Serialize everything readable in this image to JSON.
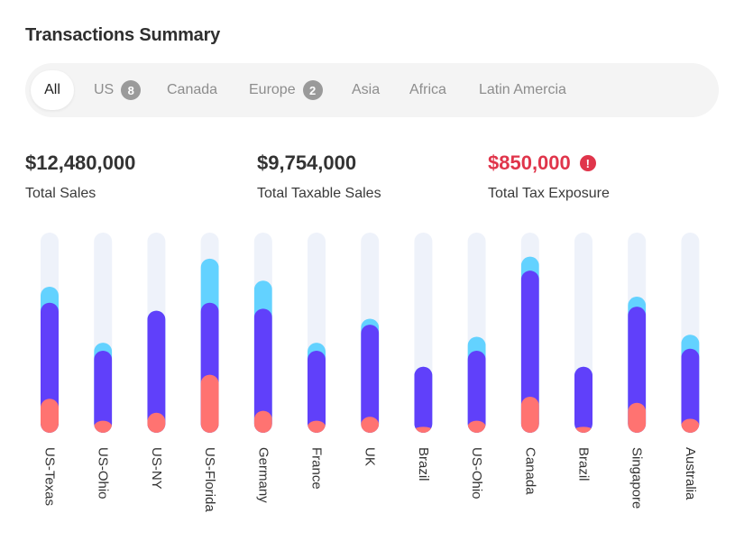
{
  "header": {
    "title": "Transactions Summary"
  },
  "tabs": [
    {
      "label": "All",
      "badge": null,
      "active": true
    },
    {
      "label": "US",
      "badge": "8",
      "active": false
    },
    {
      "label": "Canada",
      "badge": null,
      "active": false
    },
    {
      "label": "Europe",
      "badge": "2",
      "active": false
    },
    {
      "label": "Asia",
      "badge": null,
      "active": false
    },
    {
      "label": "Africa",
      "badge": null,
      "active": false
    },
    {
      "label": "Latin Amercia",
      "badge": null,
      "active": false
    }
  ],
  "stats": {
    "total_sales": {
      "value": "$12,480,000",
      "label": "Total Sales"
    },
    "taxable_sales": {
      "value": "$9,754,000",
      "label": "Total Taxable Sales"
    },
    "tax_exposure": {
      "value": "$850,000",
      "label": "Total Tax Exposure",
      "alert_icon": "exclamation-icon"
    }
  },
  "colors": {
    "track": "#eef2fa",
    "top_segment": "#63d2ff",
    "mid_segment": "#6040fa",
    "bottom_segment": "#ff7371",
    "alert": "#e0354b"
  },
  "chart_data": {
    "type": "bar",
    "stacked": true,
    "categories": [
      "US-Texas",
      "US-Ohio",
      "US-NY",
      "US-Florida",
      "Germany",
      "France",
      "UK",
      "Brazil",
      "US-Ohio",
      "Canada",
      "Brazil",
      "Singapore",
      "Australia"
    ],
    "max": 100,
    "series": [
      {
        "name": "bottom",
        "values": [
          17,
          6,
          10,
          29,
          11,
          6,
          8,
          3,
          6,
          18,
          3,
          15,
          7
        ]
      },
      {
        "name": "middle",
        "values": [
          48,
          35,
          51,
          36,
          51,
          35,
          46,
          30,
          35,
          63,
          30,
          48,
          35
        ]
      },
      {
        "name": "top",
        "values": [
          8,
          4,
          0,
          22,
          14,
          4,
          3,
          0,
          7,
          7,
          0,
          5,
          7
        ]
      }
    ]
  }
}
